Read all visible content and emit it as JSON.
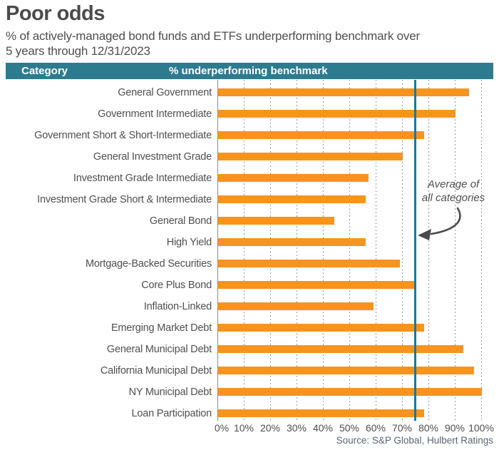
{
  "title": {
    "text": "Poor odds"
  },
  "subtitle": {
    "line1": "% of actively-managed bond funds and ETFs underperforming benchmark over",
    "line2": "5 years through 12/31/2023"
  },
  "header": {
    "category_label": "Category",
    "value_label": "% underperforming benchmark"
  },
  "annotation": {
    "line1": "Average of",
    "line2": "all categories"
  },
  "source": "Source: S&P Global, Hulbert Ratings",
  "colors": {
    "bar_orange": "#f7941e",
    "header_teal": "#2e7b90",
    "average_line_teal": "#1b7993",
    "grid_gray": "#9a9a9a",
    "text_dark": "#4b4b4b"
  },
  "chart_data": {
    "type": "bar",
    "orientation": "horizontal",
    "title": "Poor odds",
    "subtitle": "% of actively-managed bond funds and ETFs underperforming benchmark over 5 years through 12/31/2023",
    "xlabel": "% underperforming benchmark",
    "ylabel": "Category",
    "xlim": [
      0,
      100
    ],
    "grid": "dotted-vertical-every-10pct",
    "legend": "none",
    "categories": [
      "General Government",
      "Government Intermediate",
      "Government Short & Short-Intermediate",
      "General Investment Grade",
      "Investment Grade Intermediate",
      "Investment Grade Short & Intermediate",
      "General Bond",
      "High Yield",
      "Mortgage-Backed Securities",
      "Core Plus Bond",
      "Inflation-Linked",
      "Emerging Market Debt",
      "General Municipal Debt",
      "California Municipal Debt",
      "NY Municipal Debt",
      "Loan Participation"
    ],
    "values": [
      95,
      90,
      78,
      70,
      57,
      56,
      44,
      56,
      69,
      75,
      59,
      78,
      93,
      97,
      100,
      78
    ],
    "average_line_value": 74.5,
    "x_ticks": [
      "0%",
      "10%",
      "20%",
      "30%",
      "40%",
      "50%",
      "60%",
      "70%",
      "80%",
      "90%",
      "100%"
    ]
  }
}
